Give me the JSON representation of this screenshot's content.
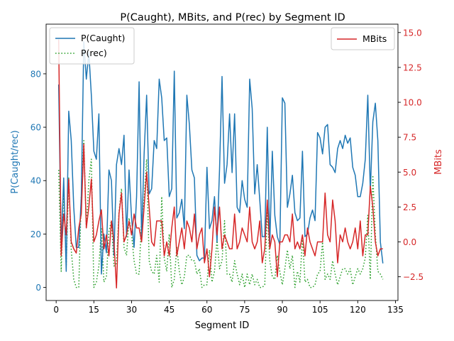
{
  "chart_data": {
    "type": "line",
    "title": "P(Caught), MBits, and P(rec) by Segment ID",
    "xlabel": "Segment ID",
    "ylabel_left": "P(Caught/rec)",
    "ylabel_right": "MBits",
    "xlim": [
      -4,
      136
    ],
    "ylim_left": [
      -4.9,
      98.6
    ],
    "ylim_right": [
      -4.2,
      15.6
    ],
    "xticks": [
      0,
      15,
      30,
      45,
      60,
      75,
      90,
      105,
      120,
      135
    ],
    "yticks_left": [
      0,
      20,
      40,
      60,
      80
    ],
    "yticks_right": [
      -2.5,
      0.0,
      2.5,
      5.0,
      7.5,
      10.0,
      12.5,
      15.0
    ],
    "ytick_labels_right": [
      "−2.5",
      "0.0",
      "2.5",
      "5.0",
      "7.5",
      "10.0",
      "12.5",
      "15.0"
    ],
    "colors": {
      "left_axis": "#1f77b4",
      "right_axis": "#d62728",
      "p_caught": "#1f77b4",
      "p_rec": "#2ca02c",
      "mbits": "#d62728"
    },
    "legend_left": {
      "position": "upper-left",
      "entries": [
        "P(Caught)",
        "P(rec)"
      ]
    },
    "legend_right": {
      "position": "upper-right",
      "entries": [
        "MBits"
      ]
    },
    "x": [
      1,
      2,
      3,
      4,
      5,
      6,
      7,
      8,
      9,
      10,
      11,
      12,
      13,
      14,
      15,
      16,
      17,
      18,
      19,
      20,
      21,
      22,
      23,
      24,
      25,
      26,
      27,
      28,
      29,
      30,
      31,
      32,
      33,
      34,
      35,
      36,
      37,
      38,
      39,
      40,
      41,
      42,
      43,
      44,
      45,
      46,
      47,
      48,
      49,
      50,
      51,
      52,
      53,
      54,
      55,
      56,
      57,
      58,
      59,
      60,
      61,
      62,
      63,
      64,
      65,
      66,
      67,
      68,
      69,
      70,
      71,
      72,
      73,
      74,
      75,
      76,
      77,
      78,
      79,
      80,
      81,
      82,
      83,
      84,
      85,
      86,
      87,
      88,
      89,
      90,
      91,
      92,
      93,
      94,
      95,
      96,
      97,
      98,
      99,
      100,
      101,
      102,
      103,
      104,
      105,
      106,
      107,
      108,
      109,
      110,
      111,
      112,
      113,
      114,
      115,
      116,
      117,
      118,
      119,
      120,
      121,
      122,
      123,
      124,
      125,
      126,
      127,
      128,
      129,
      130
    ],
    "series": [
      {
        "name": "P(Caught)",
        "axis": "left",
        "style": "solid",
        "values": [
          76,
          15,
          41,
          6,
          66,
          55,
          30,
          15,
          15,
          34,
          92,
          78,
          88,
          72,
          51,
          48,
          65,
          5,
          20,
          13,
          44,
          40,
          12,
          46,
          52,
          46,
          57,
          19,
          44,
          26,
          15,
          34,
          77,
          18,
          50,
          72,
          35,
          37,
          55,
          52,
          78,
          71,
          55,
          56,
          34,
          37,
          81,
          26,
          28,
          33,
          22,
          72,
          61,
          44,
          41,
          12,
          10,
          11,
          11,
          45,
          22,
          25,
          34,
          17,
          44,
          79,
          39,
          46,
          65,
          43,
          65,
          30,
          28,
          40,
          33,
          30,
          78,
          67,
          35,
          46,
          33,
          19,
          19,
          60,
          16,
          51,
          27,
          19,
          16,
          71,
          69,
          30,
          35,
          42,
          28,
          25,
          26,
          51,
          19,
          20,
          26,
          29,
          25,
          58,
          56,
          50,
          60,
          61,
          46,
          45,
          43,
          52,
          55,
          52,
          57,
          54,
          56,
          45,
          42,
          34,
          34,
          39,
          48,
          72,
          36,
          62,
          69,
          55,
          17,
          9
        ]
      },
      {
        "name": "P(rec)",
        "axis": "left",
        "style": "dotted",
        "values": [
          44,
          6,
          37,
          8,
          41,
          14,
          3,
          0,
          0,
          34,
          55,
          22,
          40,
          48,
          0,
          2,
          8,
          22,
          2,
          4,
          21,
          25,
          8,
          9,
          28,
          37,
          15,
          12,
          26,
          20,
          10,
          5,
          5,
          26,
          33,
          48,
          10,
          6,
          5,
          12,
          2,
          34,
          11,
          6,
          20,
          0,
          3,
          15,
          6,
          1,
          4,
          12,
          12,
          10,
          10,
          5,
          7,
          0,
          1,
          1,
          14,
          2,
          6,
          18,
          7,
          10,
          25,
          5,
          5,
          2,
          10,
          5,
          1,
          5,
          0,
          5,
          1,
          5,
          1,
          3,
          0,
          0,
          1,
          29,
          10,
          4,
          3,
          12,
          6,
          1,
          7,
          14,
          7,
          12,
          0,
          6,
          2,
          19,
          2,
          3,
          0,
          0,
          1,
          5,
          6,
          17,
          3,
          5,
          3,
          10,
          5,
          1,
          4,
          7,
          7,
          5,
          7,
          1,
          4,
          7,
          5,
          7,
          11,
          27,
          3,
          42,
          20,
          6,
          5,
          3
        ]
      },
      {
        "name": "MBits",
        "axis": "right",
        "style": "solid",
        "values": [
          14.5,
          -1.0,
          2.0,
          0.5,
          4.5,
          0.0,
          -0.5,
          -0.8,
          1.0,
          2.0,
          7.0,
          1.0,
          2.5,
          4.5,
          0.0,
          0.5,
          1.5,
          2.3,
          -0.5,
          0.5,
          -1.0,
          1.5,
          0.0,
          -3.3,
          2.0,
          3.5,
          0.0,
          0.5,
          1.5,
          0.5,
          2.0,
          1.0,
          1.0,
          0.0,
          2.5,
          5.0,
          2.5,
          0.0,
          -0.3,
          1.5,
          1.5,
          1.5,
          -1.0,
          0.0,
          -1.0,
          1.0,
          2.5,
          -1.0,
          0.0,
          1.0,
          -0.5,
          1.5,
          1.0,
          0.0,
          2.0,
          -0.5,
          0.5,
          1.0,
          -1.5,
          -0.5,
          -2.5,
          -0.5,
          2.5,
          0.5,
          2.5,
          -0.5,
          0.5,
          0.0,
          -0.5,
          -0.5,
          2.0,
          -0.5,
          0.0,
          1.0,
          0.5,
          0.0,
          2.5,
          0.0,
          -0.5,
          0.0,
          1.5,
          -1.5,
          -0.5,
          3.0,
          -0.5,
          0.5,
          0.0,
          -2.5,
          0.0,
          0.0,
          0.5,
          0.5,
          0.0,
          2.0,
          -0.5,
          0.0,
          -0.5,
          0.5,
          -1.0,
          1.0,
          0.0,
          -0.5,
          -1.0,
          0.0,
          0.0,
          0.0,
          3.5,
          0.5,
          0.0,
          3.0,
          1.5,
          -1.5,
          0.5,
          0.0,
          1.0,
          0.0,
          -0.5,
          0.0,
          1.0,
          -0.5,
          1.5,
          -1.0,
          0.5,
          0.5,
          4.0,
          2.5,
          0.0,
          -1.0,
          -0.5,
          -0.5
        ]
      }
    ]
  }
}
